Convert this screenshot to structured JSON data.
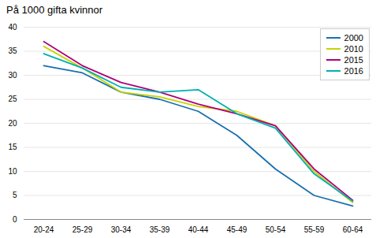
{
  "chart_data": {
    "type": "line",
    "title": "På 1000 gifta kvinnor",
    "categories": [
      "20-24",
      "25-29",
      "30-34",
      "35-39",
      "40-44",
      "45-49",
      "50-54",
      "55-59",
      "60-64"
    ],
    "series": [
      {
        "name": "2000",
        "color": "#1a6faf",
        "values": [
          32.0,
          30.5,
          26.5,
          25.0,
          22.5,
          17.5,
          10.5,
          5.0,
          2.8
        ]
      },
      {
        "name": "2010",
        "color": "#c8d400",
        "values": [
          36.0,
          31.5,
          26.5,
          25.5,
          23.5,
          22.5,
          19.5,
          10.0,
          3.5
        ]
      },
      {
        "name": "2015",
        "color": "#b0007a",
        "values": [
          37.0,
          32.0,
          28.5,
          26.5,
          24.0,
          22.0,
          19.5,
          10.5,
          4.0
        ]
      },
      {
        "name": "2016",
        "color": "#00b0b0",
        "values": [
          34.5,
          31.5,
          27.5,
          26.5,
          27.0,
          22.0,
          19.0,
          9.5,
          3.8
        ]
      }
    ],
    "ylim": [
      0,
      40
    ],
    "yticks": [
      0,
      5,
      10,
      15,
      20,
      25,
      30,
      35,
      40
    ],
    "grid": true,
    "legend": "upper right"
  }
}
